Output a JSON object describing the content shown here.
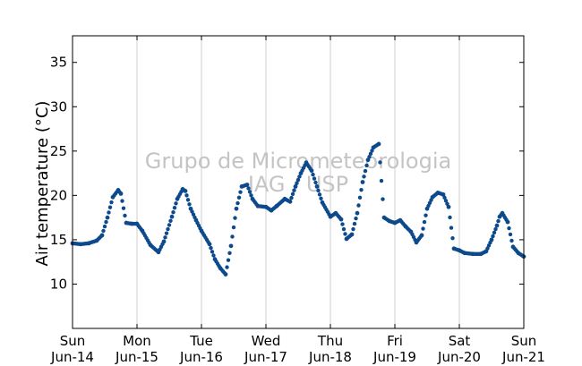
{
  "chart_data": {
    "type": "scatter",
    "title": "",
    "xlabel": "",
    "ylabel": "Air temperature (°C)",
    "watermark": [
      "Grupo de Micrometeorologia",
      "IAG / USP"
    ],
    "ylim": [
      5,
      38
    ],
    "xlim_days": [
      0,
      7
    ],
    "yticks": [
      10,
      15,
      20,
      25,
      30,
      35
    ],
    "xtick_labels": [
      {
        "day": "Sun",
        "date": "Jun-14"
      },
      {
        "day": "Mon",
        "date": "Jun-15"
      },
      {
        "day": "Tue",
        "date": "Jun-16"
      },
      {
        "day": "Wed",
        "date": "Jun-17"
      },
      {
        "day": "Thu",
        "date": "Jun-18"
      },
      {
        "day": "Fri",
        "date": "Jun-19"
      },
      {
        "day": "Sat",
        "date": "Jun-20"
      },
      {
        "day": "Sun",
        "date": "Jun-21"
      }
    ],
    "grid": "vertical",
    "series": [
      {
        "color": "#0d4a8c",
        "x": [
          "Jun-14 00:00",
          "Jun-14 03:00",
          "Jun-14 06:00",
          "Jun-14 09:00",
          "Jun-14 11:00",
          "Jun-14 13:00",
          "Jun-14 15:00",
          "Jun-14 17:00",
          "Jun-14 18:00",
          "Jun-14 20:00",
          "Jun-14 22:00",
          "Jun-15 00:00",
          "Jun-15 02:00",
          "Jun-15 05:00",
          "Jun-15 08:00",
          "Jun-15 10:00",
          "Jun-15 13:00",
          "Jun-15 15:00",
          "Jun-15 17:00",
          "Jun-15 18:00",
          "Jun-15 20:00",
          "Jun-15 22:00",
          "Jun-16 00:00",
          "Jun-16 03:00",
          "Jun-16 05:00",
          "Jun-16 07:00",
          "Jun-16 09:00",
          "Jun-16 11:00",
          "Jun-16 13:00",
          "Jun-16 15:00",
          "Jun-16 17:00",
          "Jun-16 19:00",
          "Jun-16 21:00",
          "Jun-17 00:00",
          "Jun-17 02:00",
          "Jun-17 04:00",
          "Jun-17 07:00",
          "Jun-17 09:00",
          "Jun-17 11:00",
          "Jun-17 13:00",
          "Jun-17 15:00",
          "Jun-17 17:00",
          "Jun-17 19:00",
          "Jun-17 21:00",
          "Jun-18 00:00",
          "Jun-18 02:00",
          "Jun-18 04:00",
          "Jun-18 06:00",
          "Jun-18 08:00",
          "Jun-18 10:00",
          "Jun-18 12:00",
          "Jun-18 14:00",
          "Jun-18 16:00",
          "Jun-18 18:00",
          "Jun-18 20:00",
          "Jun-18 22:00",
          "Jun-19 00:00",
          "Jun-19 02:00",
          "Jun-19 04:00",
          "Jun-19 06:00",
          "Jun-19 08:00",
          "Jun-19 10:00",
          "Jun-19 12:00",
          "Jun-19 14:00",
          "Jun-19 16:00",
          "Jun-19 18:00",
          "Jun-19 20:00",
          "Jun-19 22:00",
          "Jun-20 00:00",
          "Jun-20 02:00",
          "Jun-20 05:00",
          "Jun-20 08:00",
          "Jun-20 10:00",
          "Jun-20 12:00",
          "Jun-20 14:00",
          "Jun-20 15:00",
          "Jun-20 16:00",
          "Jun-20 18:00",
          "Jun-20 20:00",
          "Jun-20 22:00",
          "Jun-21 00:00"
        ],
        "y": [
          14.6,
          14.5,
          14.6,
          14.9,
          15.5,
          17.5,
          19.8,
          20.6,
          20.2,
          16.9,
          16.8,
          16.8,
          16.0,
          14.4,
          13.6,
          14.8,
          17.6,
          19.6,
          20.7,
          20.5,
          18.5,
          17.2,
          16.0,
          14.5,
          12.8,
          11.8,
          11.1,
          14.3,
          18.5,
          21.0,
          21.2,
          19.6,
          18.8,
          18.7,
          18.3,
          18.8,
          19.6,
          19.3,
          21.0,
          22.5,
          23.7,
          22.8,
          21.0,
          19.2,
          17.6,
          18.0,
          17.3,
          15.1,
          15.6,
          18.0,
          21.5,
          24.0,
          25.4,
          25.8,
          17.5,
          17.1,
          16.9,
          17.2,
          16.5,
          15.9,
          14.7,
          15.5,
          18.5,
          19.8,
          20.3,
          20.1,
          18.7,
          14.0,
          13.8,
          13.5,
          13.4,
          13.4,
          13.7,
          15.0,
          16.6,
          17.6,
          18.0,
          17.0,
          14.2,
          13.5,
          13.1
        ]
      }
    ]
  }
}
